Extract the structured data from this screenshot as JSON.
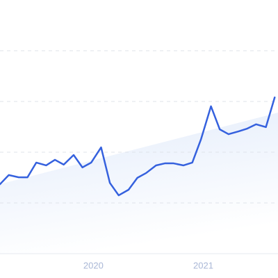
{
  "chart_data": {
    "type": "line",
    "x": [
      2019.15,
      2019.23,
      2019.32,
      2019.4,
      2019.48,
      2019.57,
      2019.65,
      2019.73,
      2019.82,
      2019.9,
      2019.98,
      2020.07,
      2020.15,
      2020.23,
      2020.32,
      2020.4,
      2020.48,
      2020.57,
      2020.65,
      2020.73,
      2020.82,
      2020.9,
      2020.98,
      2021.07,
      2021.15,
      2021.23,
      2021.32,
      2021.4,
      2021.48,
      2021.57,
      2021.65
    ],
    "series": [
      {
        "color": "#3561de",
        "values": [
          27.4,
          31.0,
          30.1,
          30.1,
          35.9,
          34.8,
          37.0,
          35.1,
          38.9,
          34.0,
          35.9,
          41.9,
          27.9,
          23.0,
          25.2,
          29.9,
          31.8,
          34.8,
          35.6,
          35.6,
          34.8,
          35.9,
          45.2,
          58.1,
          49.0,
          47.1,
          48.2,
          49.3,
          51.0,
          49.9,
          61.6
        ]
      }
    ],
    "trend": {
      "x": [
        2019.15,
        2021.68
      ],
      "values": [
        27.4,
        55.6
      ],
      "color": "#e6eefb"
    },
    "xlim": [
      2019.15,
      2021.68
    ],
    "xticks": [
      2020,
      2021
    ],
    "ylim": [
      0,
      100
    ],
    "yticks": [
      20,
      40,
      60,
      80
    ],
    "grid": true
  }
}
